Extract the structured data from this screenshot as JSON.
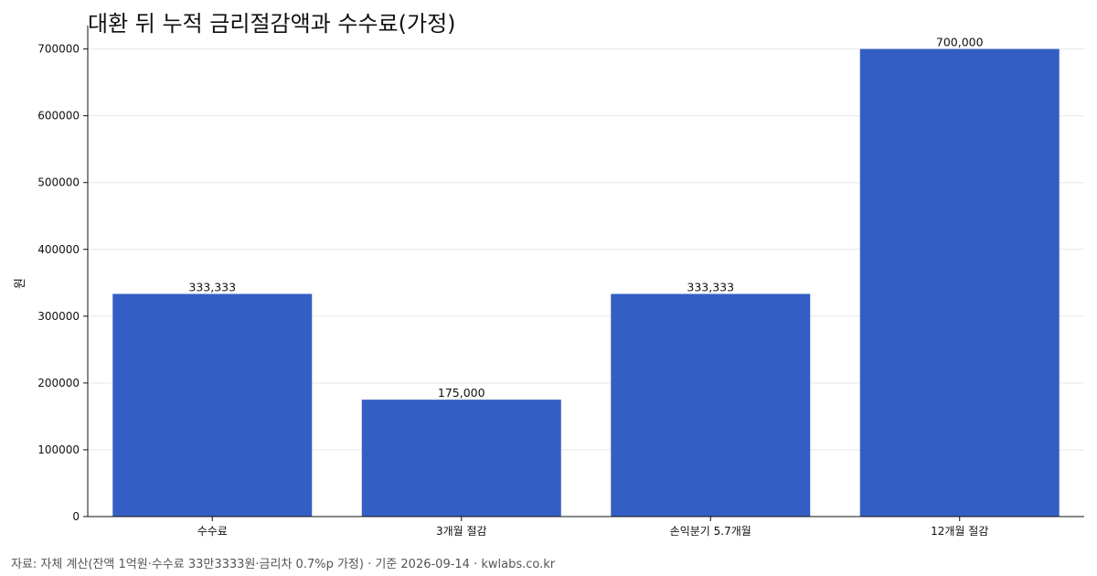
{
  "chart_data": {
    "type": "bar",
    "title": "대환 뒤 누적 금리절감액과 수수료(가정)",
    "ylabel": "원",
    "xlabel": "",
    "categories": [
      "수수료",
      "3개월 절감",
      "손익분기 5.7개월",
      "12개월 절감"
    ],
    "values": [
      333333,
      175000,
      333333,
      700000
    ],
    "data_labels": [
      "333,333",
      "175,000",
      "333,333",
      "700,000"
    ],
    "ylim": [
      0,
      735000
    ],
    "yticks": [
      0,
      100000,
      200000,
      300000,
      400000,
      500000,
      600000,
      700000
    ],
    "grid": true,
    "legend": "none",
    "bar_color": "#335fc4"
  },
  "footer": {
    "source": "자료: 자체 계산(잔액 1억원·수수료 33만3333원·금리차 0.7%p 가정) · 기준 2026-09-14 · kwlabs.co.kr"
  }
}
